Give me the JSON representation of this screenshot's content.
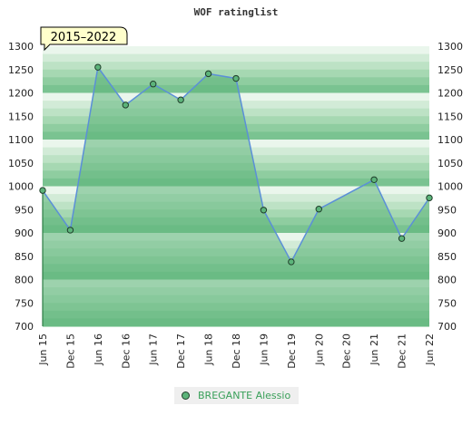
{
  "chart_data": {
    "type": "area",
    "title": "WOF ratinglist",
    "badge": "2015–2022",
    "x": [
      "Jun 15",
      "Dec 15",
      "Jun 16",
      "Dec 16",
      "Jun 17",
      "Dec 17",
      "Jun 18",
      "Dec 18",
      "Jun 19",
      "Dec 19",
      "Jun 20",
      "Dec 20",
      "Jun 21",
      "Dec 21",
      "Jun 22"
    ],
    "series": [
      {
        "name": "BREGANTE Alessio",
        "values": [
          991,
          906,
          1255,
          1174,
          1219,
          1185,
          1241,
          1231,
          949,
          838,
          951,
          null,
          1014,
          888,
          975
        ]
      }
    ],
    "yticks": [
      700,
      750,
      800,
      850,
      900,
      950,
      1000,
      1050,
      1100,
      1150,
      1200,
      1250,
      1300
    ],
    "ylim": [
      700,
      1300
    ],
    "grid": false,
    "legend_position": "bottom",
    "colors": {
      "line": "#5b8fd8",
      "marker": "#5cb47a",
      "area": "#5cb47a",
      "badge_fill": "#ffffcc",
      "legend_text": "#3aa05a"
    }
  }
}
